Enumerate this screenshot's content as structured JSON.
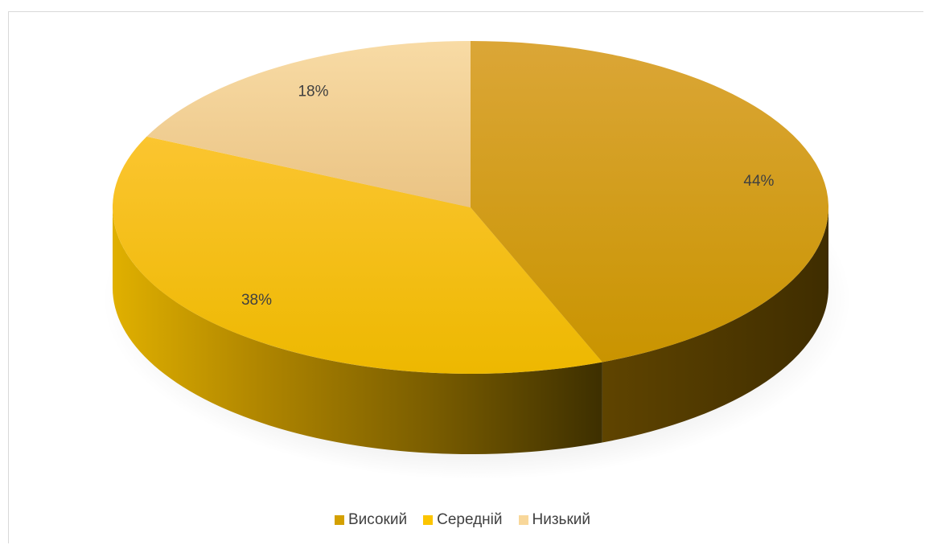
{
  "chart_data": {
    "type": "pie",
    "style": "3d",
    "title": "",
    "categories": [
      "Високий",
      "Середній",
      "Низький"
    ],
    "values": [
      44,
      38,
      18
    ],
    "labels": [
      "44%",
      "38%",
      "18%"
    ],
    "colors": [
      "#d4a000",
      "#fcc500",
      "#f8d79a"
    ],
    "legend_position": "bottom"
  }
}
